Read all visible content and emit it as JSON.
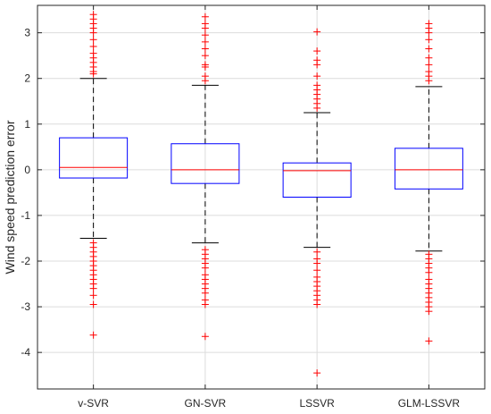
{
  "chart_data": {
    "type": "boxplot",
    "title": "",
    "xlabel": "",
    "ylabel": "Wind speed prediction error",
    "ylim": [
      -4.8,
      3.6
    ],
    "yticks": [
      -4,
      -3,
      -2,
      -1,
      0,
      1,
      2,
      3
    ],
    "grid": true,
    "colors": {
      "box": "#0000ff",
      "median": "#ff0000",
      "whisker": "#000000",
      "outlier": "#ff0000",
      "grid": "#dcdcdc",
      "axis": "#262626"
    },
    "categories": [
      "v-SVR",
      "GN-SVR",
      "LSSVR",
      "GLM-LSSVR"
    ],
    "boxes": [
      {
        "name": "v-SVR",
        "q1": -0.18,
        "median": 0.05,
        "q3": 0.7,
        "whisker_low": -1.5,
        "whisker_high": 2.0,
        "outliers": [
          3.4,
          3.3,
          3.2,
          3.1,
          3.0,
          2.85,
          2.7,
          2.55,
          2.45,
          2.35,
          2.25,
          2.15,
          2.1,
          -1.6,
          -1.7,
          -1.8,
          -1.9,
          -2.0,
          -2.1,
          -2.2,
          -2.3,
          -2.4,
          -2.5,
          -2.6,
          -2.75,
          -2.95,
          -3.62
        ]
      },
      {
        "name": "GN-SVR",
        "q1": -0.3,
        "median": 0.0,
        "q3": 0.57,
        "whisker_low": -1.6,
        "whisker_high": 1.85,
        "outliers": [
          3.35,
          3.2,
          3.1,
          2.95,
          2.8,
          2.65,
          2.5,
          2.3,
          2.25,
          2.05,
          1.95,
          -1.75,
          -1.85,
          -1.95,
          -2.05,
          -2.15,
          -2.3,
          -2.4,
          -2.5,
          -2.6,
          -2.7,
          -2.85,
          -2.95,
          -3.65
        ]
      },
      {
        "name": "LSSVR",
        "q1": -0.6,
        "median": -0.02,
        "q3": 0.15,
        "whisker_low": -1.7,
        "whisker_high": 1.25,
        "outliers": [
          3.02,
          2.6,
          2.4,
          2.3,
          2.05,
          1.85,
          1.75,
          1.65,
          1.55,
          1.45,
          1.35,
          -1.8,
          -1.95,
          -2.05,
          -2.2,
          -2.35,
          -2.45,
          -2.55,
          -2.65,
          -2.75,
          -2.85,
          -2.95,
          -4.45
        ]
      },
      {
        "name": "GLM-LSSVR",
        "q1": -0.42,
        "median": 0.0,
        "q3": 0.47,
        "whisker_low": -1.78,
        "whisker_high": 1.82,
        "outliers": [
          3.2,
          3.1,
          3.0,
          2.85,
          2.65,
          2.45,
          2.3,
          2.15,
          2.05,
          1.95,
          -1.85,
          -1.95,
          -2.05,
          -2.15,
          -2.25,
          -2.4,
          -2.5,
          -2.6,
          -2.7,
          -2.8,
          -2.9,
          -3.0,
          -3.1,
          -3.75
        ]
      }
    ]
  }
}
